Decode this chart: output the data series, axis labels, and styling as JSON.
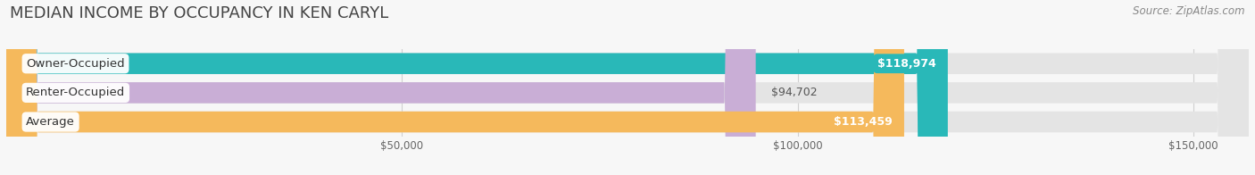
{
  "title": "MEDIAN INCOME BY OCCUPANCY IN KEN CARYL",
  "source": "Source: ZipAtlas.com",
  "categories": [
    "Owner-Occupied",
    "Renter-Occupied",
    "Average"
  ],
  "values": [
    118974,
    94702,
    113459
  ],
  "bar_colors": [
    "#29b8b8",
    "#c9aed6",
    "#f5b95c"
  ],
  "label_colors": [
    "#ffffff",
    "#666666",
    "#ffffff"
  ],
  "value_labels": [
    "$118,974",
    "$94,702",
    "$113,459"
  ],
  "bar_height": 0.72,
  "xlim": [
    0,
    157000
  ],
  "xticks": [
    50000,
    100000,
    150000
  ],
  "xtick_labels": [
    "$50,000",
    "$100,000",
    "$150,000"
  ],
  "background_color": "#f7f7f7",
  "bar_background_color": "#e4e4e4",
  "title_fontsize": 13,
  "source_fontsize": 8.5,
  "label_fontsize": 9.5,
  "value_fontsize": 9
}
